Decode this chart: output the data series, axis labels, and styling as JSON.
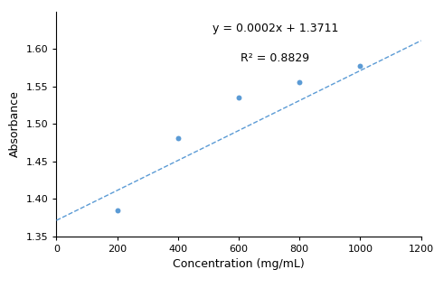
{
  "x_data": [
    200,
    400,
    600,
    800,
    1000
  ],
  "y_data": [
    1.385,
    1.481,
    1.535,
    1.556,
    1.577
  ],
  "slope": 0.0002,
  "intercept": 1.3711,
  "r_squared": 0.8829,
  "equation_text": "y = 0.0002x + 1.3711",
  "r2_text": "R² = 0.8829",
  "xlabel": "Concentration (mg/mL)",
  "ylabel": "Absorbance",
  "xlim": [
    0,
    1200
  ],
  "ylim": [
    1.35,
    1.65
  ],
  "xticks": [
    0,
    200,
    400,
    600,
    800,
    1000,
    1200
  ],
  "yticks": [
    1.35,
    1.4,
    1.45,
    1.5,
    1.55,
    1.6
  ],
  "scatter_color": "#5b9bd5",
  "line_color": "#5b9bd5",
  "background_color": "#ffffff",
  "annotation_fontsize": 9,
  "axis_fontsize": 9,
  "tick_fontsize": 8,
  "line_style": "--",
  "line_width": 1.0,
  "marker_size": 18
}
